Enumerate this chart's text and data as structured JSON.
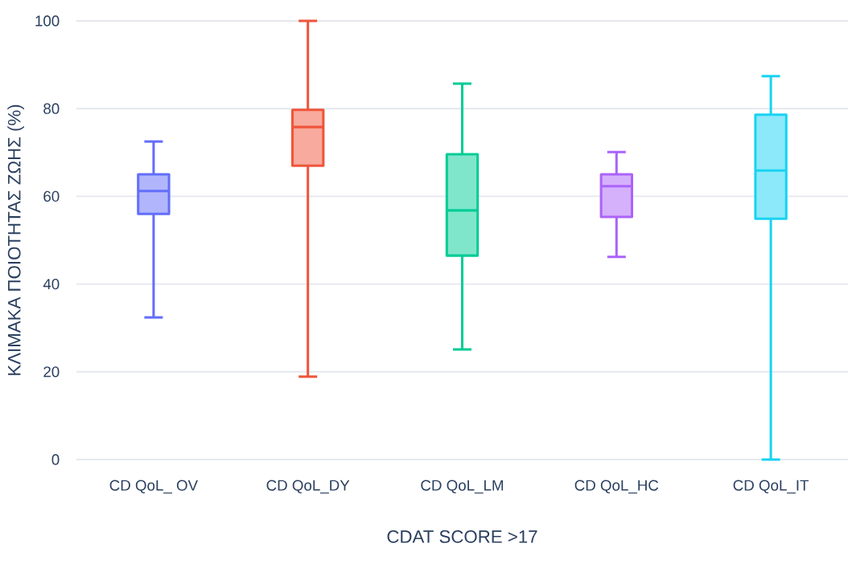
{
  "chart_data": {
    "type": "box",
    "xlabel": "CDAT SCORE >17",
    "ylabel": "ΚΛΙΜΑΚΑ ΠΟΙΟΤΗΤΑΣ ΖΩΗΣ (%)",
    "categories": [
      "CD QoL_ OV",
      "CD QoL_DY",
      "CD QoL_LM",
      "CD QoL_HC",
      "CD QoL_IT"
    ],
    "colors": [
      "#636efa",
      "#ef553b",
      "#00cc96",
      "#ab63fa",
      "#19d3f3"
    ],
    "boxes": [
      {
        "low": 32.4,
        "q1": 56,
        "median": 61.2,
        "q3": 65,
        "high": 72.5
      },
      {
        "low": 18.9,
        "q1": 67,
        "median": 75.8,
        "q3": 79.7,
        "high": 100
      },
      {
        "low": 25.1,
        "q1": 46.5,
        "median": 56.8,
        "q3": 69.6,
        "high": 85.7
      },
      {
        "low": 46.2,
        "q1": 55.3,
        "median": 62.3,
        "q3": 65,
        "high": 70.1
      },
      {
        "low": 0,
        "q1": 54.9,
        "median": 65.9,
        "q3": 78.6,
        "high": 87.4
      }
    ],
    "ylim": [
      0,
      100
    ],
    "yticks": [
      0,
      20,
      40,
      60,
      80,
      100
    ],
    "grid": "y"
  }
}
